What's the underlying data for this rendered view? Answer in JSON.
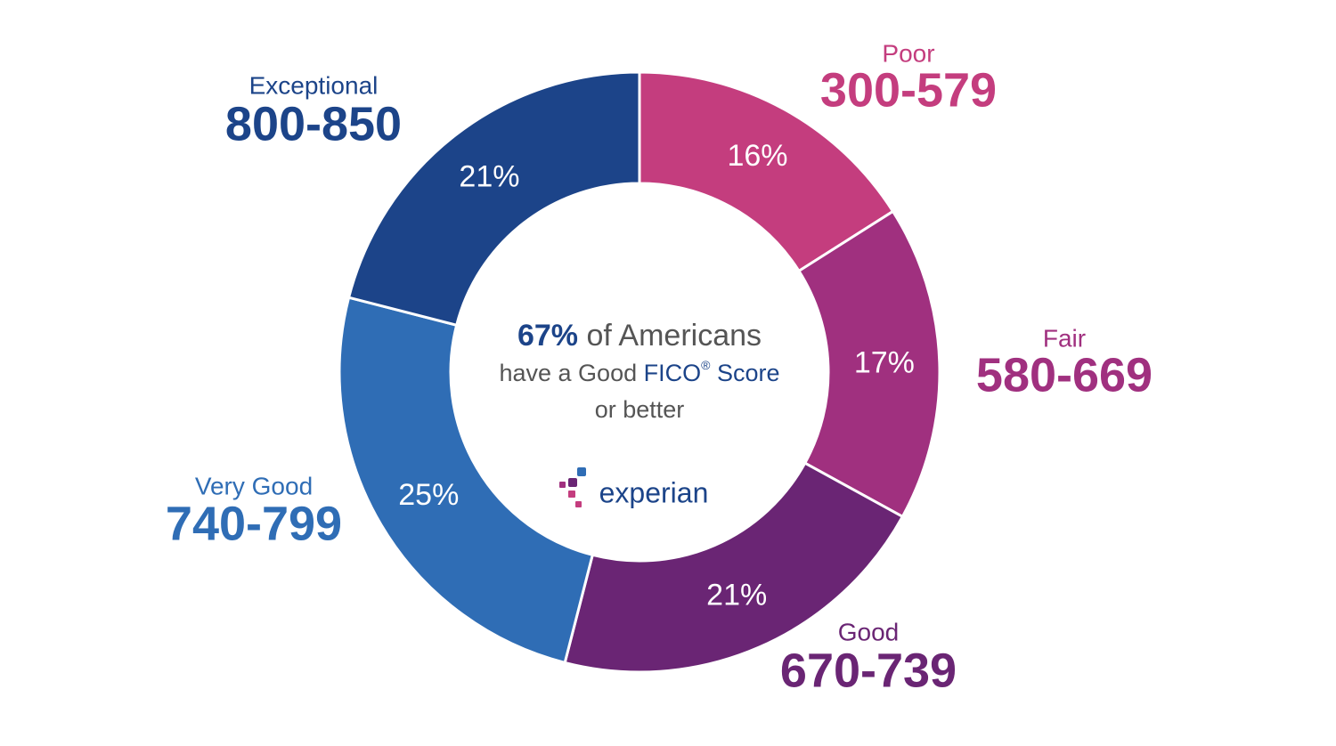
{
  "chart_data": {
    "type": "donut",
    "categories": [
      "Poor",
      "Fair",
      "Good",
      "Very Good",
      "Exceptional"
    ],
    "ranges": [
      "300-579",
      "580-669",
      "670-739",
      "740-799",
      "800-850"
    ],
    "values": [
      16,
      17,
      21,
      25,
      21
    ],
    "value_labels": [
      "16%",
      "17%",
      "21%",
      "25%",
      "21%"
    ],
    "colors": [
      "#c43d7e",
      "#a0307f",
      "#6a2574",
      "#2f6db5",
      "#1c4489"
    ],
    "center_text": {
      "highlight": "67%",
      "line1": "of Americans",
      "line2a": "have a Good",
      "line2b": "FICO",
      "reg": "®",
      "line2c": "Score",
      "line3": "or better"
    },
    "logo": "experian"
  }
}
